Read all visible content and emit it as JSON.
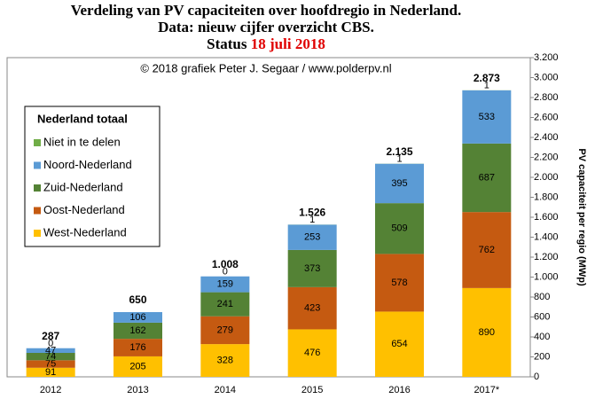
{
  "chart_data": {
    "type": "stacked_bar",
    "title_lines": [
      "Verdeling van PV capaciteiten over hoofdregio in Nederland.",
      "Data: nieuw cijfer overzicht CBS."
    ],
    "status_label": "Status",
    "status_date": "18 juli 2018",
    "credit": "© 2018 grafiek Peter J. Segaar / www.polderpv.nl",
    "y_label": "PV capaciteit per regio (MWp)",
    "legend_title": "Nederland totaal",
    "categories": [
      "2012",
      "2013",
      "2014",
      "2015",
      "2016",
      "2017*"
    ],
    "series": [
      {
        "name": "West-Nederland",
        "color": "#ffc000",
        "values": [
          91,
          205,
          328,
          476,
          654,
          890
        ]
      },
      {
        "name": "Oost-Nederland",
        "color": "#c55a11",
        "values": [
          75,
          176,
          279,
          423,
          578,
          762
        ]
      },
      {
        "name": "Zuid-Nederland",
        "color": "#548235",
        "values": [
          74,
          162,
          241,
          373,
          509,
          687
        ]
      },
      {
        "name": "Noord-Nederland",
        "color": "#5b9bd5",
        "values": [
          47,
          106,
          159,
          253,
          395,
          533
        ]
      },
      {
        "name": "Niet in te delen",
        "color": "#70ad47",
        "values": [
          0,
          null,
          0,
          1,
          1,
          1
        ]
      }
    ],
    "totals": {
      "values": [
        287,
        650,
        1008,
        1526,
        2135,
        2873
      ],
      "value_labels": [
        "287",
        "650",
        "1.008",
        "1.526",
        "2.135",
        "2.873"
      ]
    },
    "ylim": [
      0,
      3200
    ],
    "yticks": [
      0,
      200,
      400,
      600,
      800,
      {
        "value": 1000,
        "label": "1.000"
      },
      {
        "value": 1200,
        "label": "1.200"
      },
      {
        "value": 1400,
        "label": "1.400"
      },
      {
        "value": 1600,
        "label": "1.600"
      },
      {
        "value": 1800,
        "label": "1.800"
      },
      {
        "value": 2000,
        "label": "2.000"
      },
      {
        "value": 2200,
        "label": "2.200"
      },
      {
        "value": 2400,
        "label": "2.400"
      },
      {
        "value": 2600,
        "label": "2.600"
      },
      {
        "value": 2800,
        "label": "2.800"
      },
      {
        "value": 3000,
        "label": "3.000"
      },
      {
        "value": 3200,
        "label": "3.200"
      }
    ],
    "y_axis_side": "right",
    "grid": false,
    "legend_position": "upper left"
  }
}
